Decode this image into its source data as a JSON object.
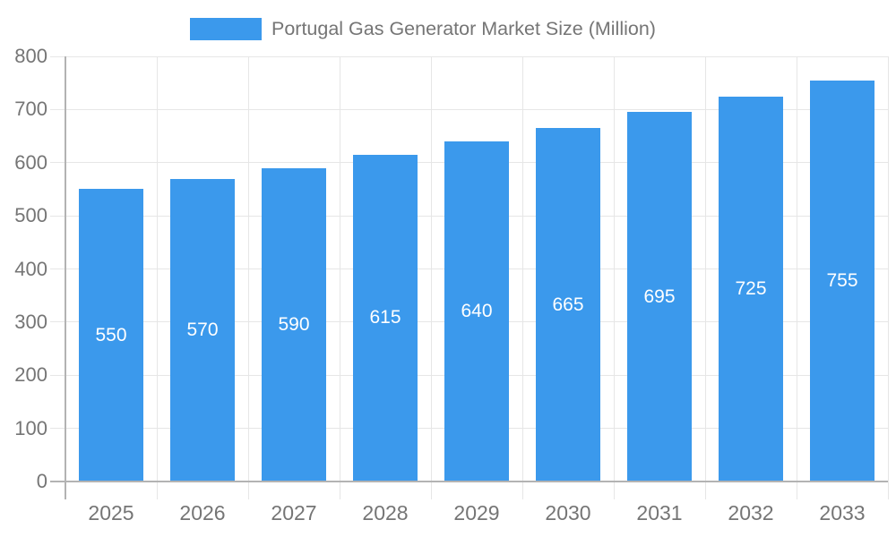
{
  "legend": {
    "label": "Portugal Gas Generator Market Size (Million)"
  },
  "colors": {
    "bar": "#3B99EC",
    "axis_text": "#757575",
    "grid": "#e6e6e6",
    "axis_line": "#b3b3b3",
    "data_label": "#ffffff",
    "background": "#ffffff"
  },
  "chart_data": {
    "type": "bar",
    "title": "Portugal Gas Generator Market Size (Million)",
    "categories": [
      "2025",
      "2026",
      "2027",
      "2028",
      "2029",
      "2030",
      "2031",
      "2032",
      "2033"
    ],
    "values": [
      550,
      570,
      590,
      615,
      640,
      665,
      695,
      725,
      755
    ],
    "xlabel": "",
    "ylabel": "",
    "ylim": [
      0,
      800
    ],
    "ytick_step": 100,
    "yticks": [
      0,
      100,
      200,
      300,
      400,
      500,
      600,
      700,
      800
    ],
    "grid": true,
    "legend_position": "top",
    "data_labels_position": "inside-center",
    "series_name": "Portugal Gas Generator Market Size (Million)"
  }
}
